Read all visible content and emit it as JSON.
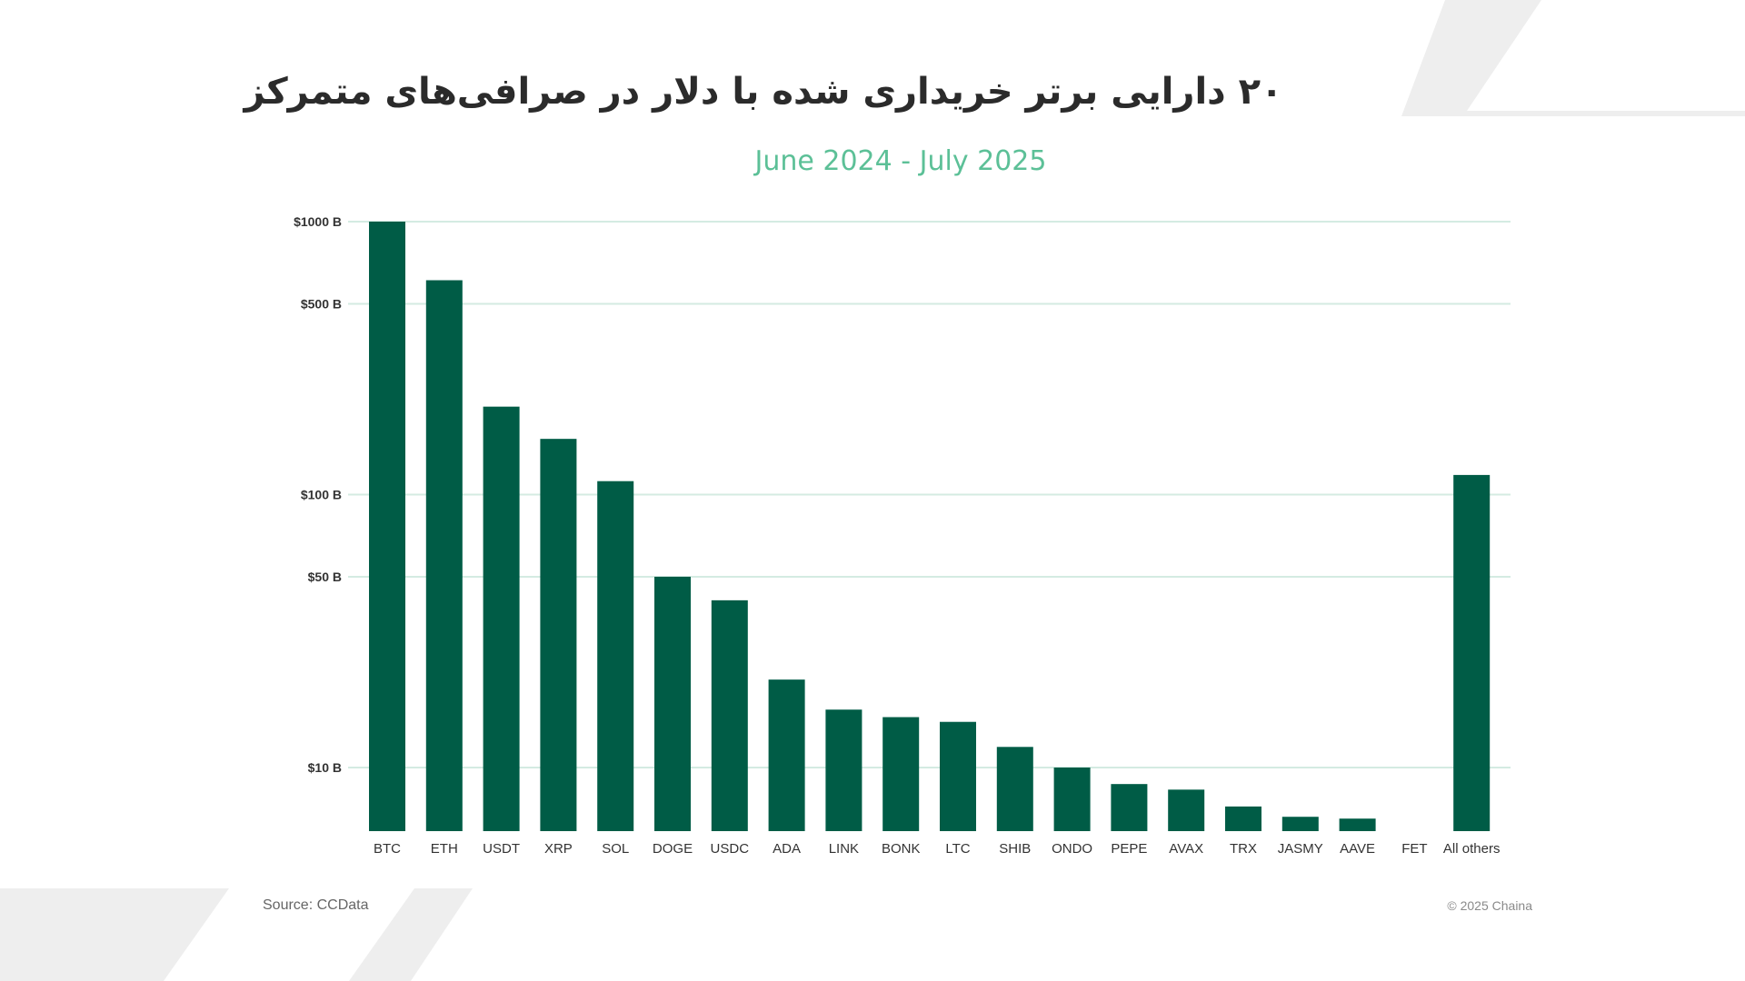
{
  "page": {
    "title": "۲۰ دارایی برتر خریداری شده با دلار در صرافی‌های متمرکز",
    "subtitle": "June 2024 - July 2025",
    "source": "Source: CCData",
    "copyright": "© 2025 Chaina"
  },
  "colors": {
    "bar": "#005c46",
    "grid": "#d4ebe2",
    "subtitle": "#5cc097",
    "title": "#2b2b2b",
    "decor": "#eeeeee"
  },
  "chart_data": {
    "type": "bar",
    "yscale": "log",
    "title": "۲۰ دارایی برتر خریداری شده با دلار در صرافی‌های متمرکز",
    "subtitle": "June 2024 - July 2025",
    "xlabel": "",
    "ylabel": "",
    "grid": true,
    "legend": "none",
    "y_ticks": [
      {
        "value": 10,
        "label": "$10 B"
      },
      {
        "value": 50,
        "label": "$50 B"
      },
      {
        "value": 100,
        "label": "$100 B"
      },
      {
        "value": 500,
        "label": "$500 B"
      },
      {
        "value": 1000,
        "label": "$1000 B"
      }
    ],
    "categories": [
      "BTC",
      "ETH",
      "USDT",
      "XRP",
      "SOL",
      "DOGE",
      "USDC",
      "ADA",
      "LINK",
      "BONK",
      "LTC",
      "SHIB",
      "ONDO",
      "PEPE",
      "AVAX",
      "TRX",
      "JASMY",
      "AAVE",
      "FET",
      "All others"
    ],
    "values": [
      1000,
      610,
      210,
      160,
      112,
      50,
      41,
      21,
      16.3,
      15.3,
      14.7,
      11.9,
      10.0,
      8.7,
      8.3,
      7.2,
      6.6,
      6.5,
      null,
      118
    ]
  }
}
